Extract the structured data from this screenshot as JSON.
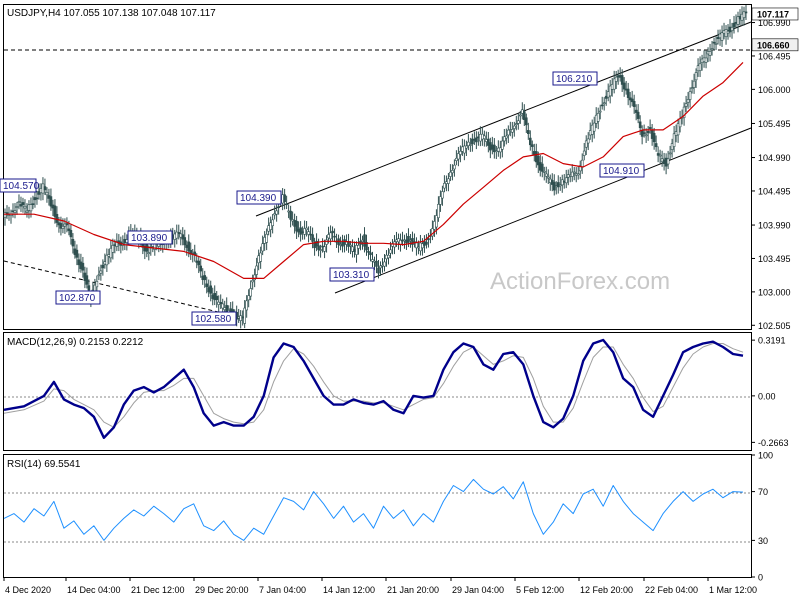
{
  "chart_data": [
    {
      "type": "line",
      "title": "USDJPY,H4  107.055 107.138 107.048 107.117",
      "watermark": "ActionForex.com",
      "x_labels": [
        "4 Dec 2020",
        "14 Dec 04:00",
        "21 Dec 12:00",
        "29 Dec 20:00",
        "7 Jan 04:00",
        "14 Jan 12:00",
        "21 Jan 20:00",
        "29 Jan 04:00",
        "5 Feb 12:00",
        "12 Feb 20:00",
        "22 Feb 04:00",
        "1 Mar 12:00"
      ],
      "y_ticks": [
        102.505,
        103.0,
        103.495,
        103.99,
        104.495,
        104.99,
        105.495,
        106.0,
        106.495,
        106.99
      ],
      "ylim": [
        102.45,
        107.25
      ],
      "price_tag": 107.117,
      "level_tag": 106.66,
      "price_labels": [
        "104.570",
        "104.390",
        "103.890",
        "102.870",
        "102.580",
        "103.310",
        "106.210",
        "104.910"
      ],
      "series": [
        {
          "name": "price",
          "color": "#2f4f4f",
          "x": [
            0,
            8,
            16,
            24,
            32,
            40,
            48,
            56,
            64,
            72,
            80,
            88,
            96,
            104,
            112,
            120,
            128,
            136,
            144,
            152,
            160,
            168,
            176,
            184,
            192,
            200,
            208,
            216,
            224,
            232,
            240,
            248,
            256,
            264,
            272,
            280,
            288,
            296,
            304,
            312,
            320,
            328,
            336,
            344,
            352,
            360,
            368,
            376,
            384,
            392,
            400,
            408,
            416,
            424,
            432,
            440,
            448,
            456,
            464,
            472,
            480,
            488,
            496,
            504,
            512,
            520,
            528,
            536,
            544,
            552,
            560,
            568,
            576,
            584,
            592,
            600,
            608,
            616,
            624,
            632,
            640,
            648,
            656,
            664,
            672,
            680,
            688,
            696,
            704,
            712,
            720,
            728,
            736,
            744
          ],
          "y": [
            104.1,
            104.2,
            104.3,
            104.2,
            104.4,
            104.55,
            104.3,
            104.0,
            103.95,
            103.6,
            103.3,
            102.87,
            103.3,
            103.5,
            103.7,
            103.75,
            103.85,
            103.8,
            103.6,
            103.7,
            103.75,
            103.8,
            103.85,
            103.7,
            103.5,
            103.2,
            103.0,
            102.8,
            102.75,
            102.65,
            102.58,
            103.1,
            103.5,
            103.85,
            104.2,
            104.39,
            104.1,
            103.9,
            103.9,
            103.7,
            103.65,
            103.85,
            103.75,
            103.7,
            103.6,
            103.8,
            103.5,
            103.31,
            103.55,
            103.7,
            103.8,
            103.75,
            103.65,
            103.75,
            104.0,
            104.5,
            104.8,
            105.0,
            105.2,
            105.25,
            105.3,
            105.15,
            105.1,
            105.3,
            105.5,
            105.65,
            105.2,
            104.9,
            104.7,
            104.55,
            104.65,
            104.7,
            104.8,
            105.2,
            105.5,
            105.8,
            106.0,
            106.21,
            106.0,
            105.7,
            105.35,
            105.4,
            105.0,
            104.91,
            105.3,
            105.6,
            106.0,
            106.3,
            106.5,
            106.7,
            106.8,
            106.9,
            107.05,
            107.117
          ]
        },
        {
          "name": "MA",
          "color": "#cc0000",
          "x": [
            0,
            30,
            60,
            90,
            120,
            150,
            180,
            210,
            240,
            260,
            280,
            300,
            320,
            340,
            360,
            380,
            400,
            420,
            440,
            460,
            480,
            500,
            520,
            540,
            560,
            580,
            600,
            620,
            640,
            660,
            680,
            700,
            720,
            740
          ],
          "y": [
            104.15,
            104.15,
            104.05,
            103.85,
            103.7,
            103.65,
            103.6,
            103.45,
            103.2,
            103.2,
            103.45,
            103.7,
            103.75,
            103.75,
            103.72,
            103.72,
            103.7,
            103.75,
            104.0,
            104.3,
            104.55,
            104.8,
            105.0,
            105.05,
            104.9,
            104.85,
            105.0,
            105.3,
            105.4,
            105.4,
            105.6,
            105.9,
            106.1,
            106.4
          ]
        }
      ]
    },
    {
      "type": "line",
      "title": "MACD(12,26,9) 0.2153 0.2212",
      "y_ticks": [
        0.3191,
        0.0,
        -0.2663
      ],
      "ylim": [
        -0.31,
        0.36
      ],
      "series": [
        {
          "name": "macd",
          "color": "#00008b",
          "x": [
            0,
            20,
            40,
            50,
            60,
            70,
            80,
            90,
            100,
            110,
            120,
            130,
            140,
            150,
            160,
            170,
            180,
            190,
            200,
            210,
            220,
            230,
            240,
            250,
            260,
            270,
            280,
            290,
            300,
            310,
            320,
            330,
            340,
            350,
            360,
            370,
            380,
            390,
            400,
            410,
            420,
            430,
            440,
            450,
            460,
            470,
            480,
            490,
            500,
            510,
            520,
            530,
            540,
            550,
            560,
            570,
            580,
            590,
            600,
            610,
            620,
            630,
            640,
            650,
            660,
            670,
            680,
            690,
            700,
            710,
            720,
            730,
            740
          ],
          "y": [
            -0.08,
            -0.06,
            0.0,
            0.08,
            -0.02,
            -0.05,
            -0.07,
            -0.12,
            -0.24,
            -0.18,
            -0.05,
            0.03,
            0.05,
            0.02,
            0.05,
            0.1,
            0.15,
            0.05,
            -0.1,
            -0.17,
            -0.15,
            -0.17,
            -0.17,
            -0.12,
            0.0,
            0.22,
            0.3,
            0.28,
            0.2,
            0.1,
            0.0,
            -0.05,
            -0.05,
            -0.02,
            -0.04,
            -0.05,
            -0.03,
            -0.08,
            -0.1,
            0.0,
            -0.01,
            0.0,
            0.15,
            0.25,
            0.3,
            0.28,
            0.18,
            0.15,
            0.24,
            0.25,
            0.18,
            0.0,
            -0.15,
            -0.18,
            -0.13,
            0.0,
            0.2,
            0.3,
            0.32,
            0.25,
            0.1,
            0.05,
            -0.08,
            -0.12,
            0.0,
            0.12,
            0.25,
            0.28,
            0.3,
            0.31,
            0.28,
            0.24,
            0.23
          ]
        },
        {
          "name": "signal",
          "color": "#a0a0a0",
          "x": [
            0,
            20,
            40,
            50,
            60,
            70,
            80,
            90,
            100,
            110,
            120,
            130,
            140,
            150,
            160,
            170,
            180,
            190,
            200,
            210,
            220,
            230,
            240,
            250,
            260,
            270,
            280,
            290,
            300,
            310,
            320,
            330,
            340,
            350,
            360,
            370,
            380,
            390,
            400,
            410,
            420,
            430,
            440,
            450,
            460,
            470,
            480,
            490,
            500,
            510,
            520,
            530,
            540,
            550,
            560,
            570,
            580,
            590,
            600,
            610,
            620,
            630,
            640,
            650,
            660,
            670,
            680,
            690,
            700,
            710,
            720,
            730,
            740
          ],
          "y": [
            -0.1,
            -0.08,
            -0.03,
            0.04,
            0.03,
            -0.02,
            -0.05,
            -0.08,
            -0.15,
            -0.18,
            -0.12,
            -0.04,
            0.02,
            0.03,
            0.03,
            0.06,
            0.1,
            0.1,
            0.0,
            -0.1,
            -0.13,
            -0.15,
            -0.16,
            -0.15,
            -0.08,
            0.08,
            0.2,
            0.27,
            0.24,
            0.17,
            0.08,
            0.0,
            -0.03,
            -0.03,
            -0.03,
            -0.04,
            -0.04,
            -0.06,
            -0.08,
            -0.05,
            -0.02,
            -0.01,
            0.07,
            0.17,
            0.25,
            0.28,
            0.23,
            0.18,
            0.2,
            0.23,
            0.22,
            0.1,
            -0.06,
            -0.15,
            -0.15,
            -0.07,
            0.08,
            0.22,
            0.28,
            0.28,
            0.18,
            0.1,
            -0.01,
            -0.09,
            -0.06,
            0.05,
            0.16,
            0.24,
            0.28,
            0.3,
            0.3,
            0.27,
            0.25
          ]
        }
      ]
    },
    {
      "type": "line",
      "title": "RSI(14) 69.5541",
      "y_ticks": [
        100,
        70,
        30,
        0
      ],
      "ylim": [
        0,
        100
      ],
      "series": [
        {
          "name": "rsi",
          "color": "#1e90ff",
          "x": [
            0,
            10,
            20,
            30,
            40,
            50,
            60,
            70,
            80,
            90,
            100,
            110,
            120,
            130,
            140,
            150,
            160,
            170,
            180,
            190,
            200,
            210,
            220,
            230,
            240,
            250,
            260,
            270,
            280,
            290,
            300,
            310,
            320,
            330,
            340,
            350,
            360,
            370,
            380,
            390,
            400,
            410,
            420,
            430,
            440,
            450,
            460,
            470,
            480,
            490,
            500,
            510,
            520,
            530,
            540,
            550,
            560,
            570,
            580,
            590,
            600,
            610,
            620,
            630,
            640,
            650,
            660,
            670,
            680,
            690,
            700,
            710,
            720,
            730,
            740
          ],
          "y": [
            48,
            52,
            45,
            56,
            50,
            62,
            40,
            46,
            35,
            42,
            30,
            40,
            48,
            55,
            50,
            58,
            52,
            45,
            56,
            60,
            42,
            38,
            46,
            35,
            30,
            40,
            35,
            50,
            65,
            62,
            55,
            70,
            60,
            48,
            58,
            45,
            52,
            40,
            58,
            48,
            55,
            42,
            52,
            45,
            62,
            75,
            70,
            80,
            72,
            68,
            74,
            64,
            78,
            52,
            35,
            45,
            60,
            52,
            68,
            72,
            58,
            75,
            62,
            52,
            45,
            38,
            52,
            62,
            70,
            62,
            68,
            72,
            65,
            70,
            69.5541
          ]
        }
      ]
    }
  ]
}
